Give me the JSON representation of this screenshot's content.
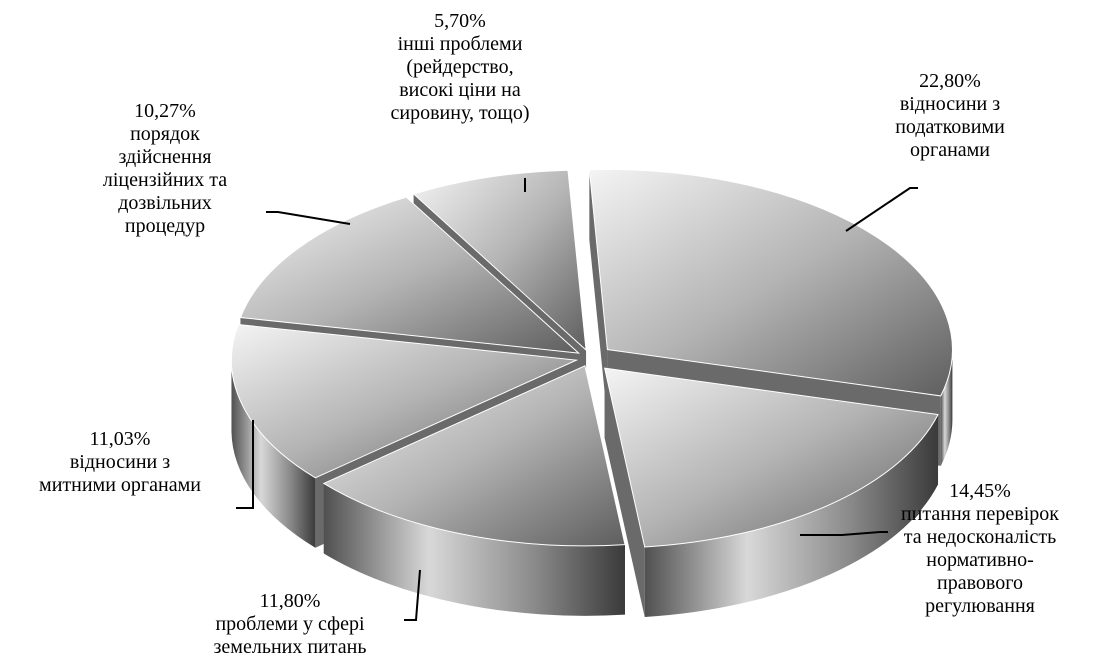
{
  "chart_data": {
    "type": "pie",
    "style": "3d-exploded",
    "title": "",
    "slices": [
      {
        "value": 22.8,
        "label_value": "22,80%",
        "label_lines": [
          "відносини з",
          "податковими",
          "органами"
        ],
        "color": "#b9b9b9"
      },
      {
        "value": 14.45,
        "label_value": "14,45%",
        "label_lines": [
          "питання перевірок",
          "та недосконаліcть",
          "нормативно-",
          "правового",
          "регулювання"
        ],
        "color": "#a9a9a9"
      },
      {
        "value": 11.8,
        "label_value": "11,80%",
        "label_lines": [
          "проблеми у сфері",
          "земельних питань"
        ],
        "color": "#b0b0b0"
      },
      {
        "value": 11.03,
        "label_value": "11,03%",
        "label_lines": [
          "відносини з",
          "митними органами"
        ],
        "color": "#bdbdbd"
      },
      {
        "value": 10.27,
        "label_value": "10,27%",
        "label_lines": [
          "порядок",
          "здійснення",
          "ліцензійних та",
          "дозвільних",
          "процедур"
        ],
        "color": "#b5b5b5"
      },
      {
        "value": 5.7,
        "label_value": "5,70%",
        "label_lines": [
          "інші проблеми",
          "(рейдерство,",
          "високі ціни на",
          "сировину, тощо)"
        ],
        "color": "#adadad"
      }
    ]
  }
}
